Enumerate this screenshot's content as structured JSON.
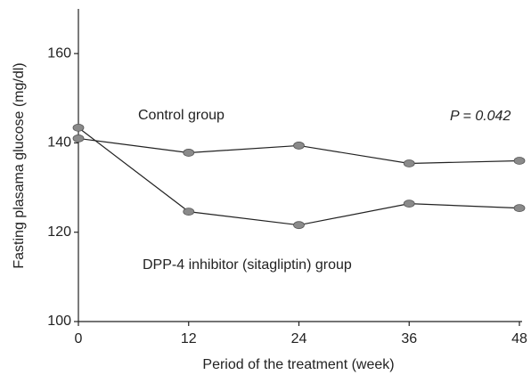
{
  "chart_data": {
    "type": "line",
    "x": [
      0,
      12,
      24,
      36,
      48
    ],
    "series": [
      {
        "name": "Control group",
        "color": "#222222",
        "values": [
          141,
          137.8,
          139.4,
          135.4,
          136
        ]
      },
      {
        "name": "DPP-4 inhibitor (sitagliptin) group",
        "color": "#222222",
        "values": [
          143.4,
          124.6,
          121.6,
          126.4,
          125.4
        ]
      }
    ],
    "annotation": "P = 0.042",
    "x_label": "Period of the treatment (week)",
    "y_label": "Fasting plasama glucose (mg/dl)",
    "xlim": [
      0,
      48
    ],
    "xticks": [
      0,
      12,
      24,
      36,
      48
    ],
    "ylim": [
      100,
      170
    ],
    "yticks": [
      100,
      120,
      140,
      160
    ],
    "marker_color": "#8a8a8a"
  }
}
